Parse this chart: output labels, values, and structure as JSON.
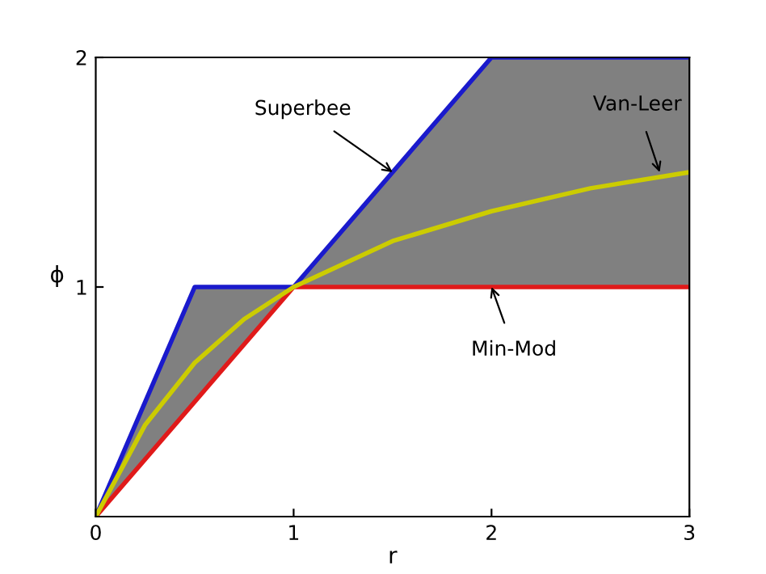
{
  "chart_data": {
    "type": "line",
    "xlabel": "r",
    "ylabel": "ϕ",
    "xlim": [
      0,
      3
    ],
    "ylim": [
      0,
      2
    ],
    "xticks": [
      0,
      1,
      2,
      3
    ],
    "yticks": [
      1,
      2
    ],
    "grid": false,
    "legend": false,
    "marker": "none",
    "line_style": "solid",
    "series": [
      {
        "color": "#1a1acc",
        "x": [
          0,
          0.5,
          1,
          2,
          3
        ],
        "values": [
          0,
          1,
          1,
          2,
          2
        ]
      },
      {
        "color": "#e01a1a",
        "x": [
          0,
          1,
          3
        ],
        "values": [
          0,
          1,
          1
        ]
      },
      {
        "color": "#cccc00",
        "x": [
          0,
          0.25,
          0.5,
          0.75,
          1,
          1.5,
          2,
          2.5,
          3
        ],
        "values": [
          0,
          0.4,
          0.67,
          0.86,
          1,
          1.2,
          1.33,
          1.43,
          1.5
        ]
      }
    ],
    "annotations": [
      {
        "text": "Superbee",
        "x": 1.5,
        "y": 1.5
      },
      {
        "text": "Van-Leer",
        "x": 2.85,
        "y": 1.5
      },
      {
        "text": "Min-Mod",
        "x": 2.0,
        "y": 1.0
      }
    ]
  }
}
